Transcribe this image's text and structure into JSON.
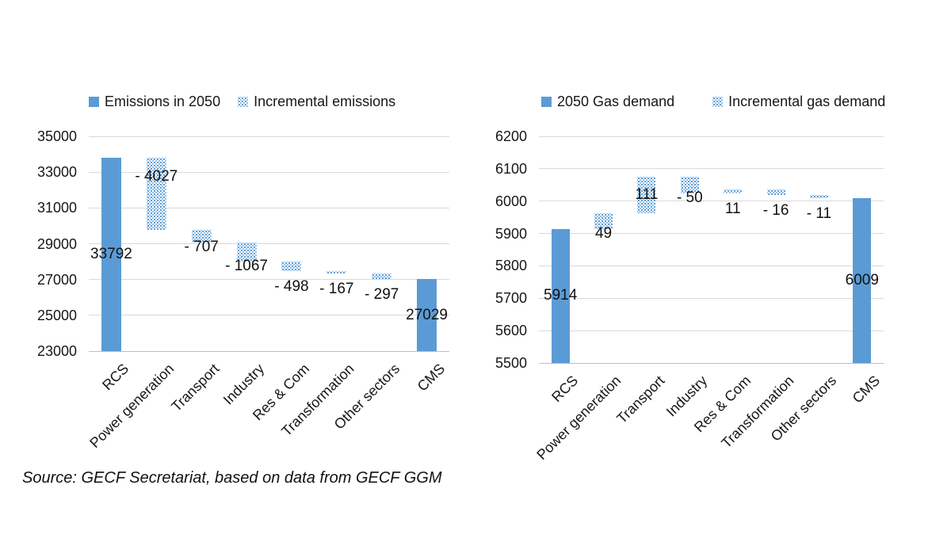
{
  "source_note": "Source: GECF Secretariat, based on data from GECF GGM",
  "colors": {
    "bar_solid": "#5b9bd5",
    "bar_pattern_dot": "#4f97d6",
    "gridline": "#d9d9d9",
    "axis_line": "#bfbfbf",
    "text": "#171717"
  },
  "chart_data": [
    {
      "type": "bar",
      "subtype": "waterfall",
      "title": "",
      "xlabel": "",
      "ylabel": "",
      "grid": true,
      "legend_position": "top",
      "legend": [
        {
          "label": "Emissions in 2050",
          "style": "solid"
        },
        {
          "label": "Incremental emissions",
          "style": "dotted"
        }
      ],
      "ylim": [
        23000,
        35000
      ],
      "yticks": [
        "23000",
        "25000",
        "27000",
        "29000",
        "31000",
        "33000",
        "35000"
      ],
      "categories": [
        "RCS",
        "Power generation",
        "Transport",
        "Industry",
        "Res & Com",
        "Transformation",
        "Other sectors",
        "CMS"
      ],
      "points": [
        {
          "category": "RCS",
          "kind": "total",
          "value": 33792,
          "label": "33792",
          "label_pos": "center"
        },
        {
          "category": "Power generation",
          "kind": "delta",
          "value": -4027,
          "label": "- 4027",
          "label_pos": "inside-top"
        },
        {
          "category": "Transport",
          "kind": "delta",
          "value": -707,
          "label": "- 707",
          "label_pos": "at-end"
        },
        {
          "category": "Industry",
          "kind": "delta",
          "value": -1067,
          "label": "- 1067",
          "label_pos": "at-end"
        },
        {
          "category": "Res & Com",
          "kind": "delta",
          "value": -498,
          "label": "- 498",
          "label_pos": "below"
        },
        {
          "category": "Transformation",
          "kind": "delta",
          "value": -167,
          "label": "- 167",
          "label_pos": "below"
        },
        {
          "category": "Other sectors",
          "kind": "delta",
          "value": -297,
          "label": "- 297",
          "label_pos": "below"
        },
        {
          "category": "CMS",
          "kind": "total",
          "value": 27029,
          "label": "27029",
          "label_pos": "center"
        }
      ]
    },
    {
      "type": "bar",
      "subtype": "waterfall",
      "title": "",
      "xlabel": "",
      "ylabel": "",
      "grid": true,
      "legend_position": "top",
      "legend": [
        {
          "label": "2050 Gas demand",
          "style": "solid"
        },
        {
          "label": "Incremental gas demand",
          "style": "dotted"
        }
      ],
      "ylim": [
        5500,
        6200
      ],
      "yticks": [
        "5500",
        "5600",
        "5700",
        "5800",
        "5900",
        "6000",
        "6100",
        "6200"
      ],
      "categories": [
        "RCS",
        "Power generation",
        "Transport",
        "Industry",
        "Res & Com",
        "Transformation",
        "Other sectors",
        "CMS"
      ],
      "points": [
        {
          "category": "RCS",
          "kind": "total",
          "value": 5914,
          "label": "5914",
          "label_pos": "center"
        },
        {
          "category": "Power generation",
          "kind": "delta",
          "value": 49,
          "label": "49",
          "label_pos": "at-end"
        },
        {
          "category": "Transport",
          "kind": "delta",
          "value": 111,
          "label": "111",
          "label_pos": "inside-center"
        },
        {
          "category": "Industry",
          "kind": "delta",
          "value": -50,
          "label": "- 50",
          "label_pos": "at-end"
        },
        {
          "category": "Res & Com",
          "kind": "delta",
          "value": 11,
          "label": "11",
          "label_pos": "below"
        },
        {
          "category": "Transformation",
          "kind": "delta",
          "value": -16,
          "label": "- 16",
          "label_pos": "below"
        },
        {
          "category": "Other sectors",
          "kind": "delta",
          "value": -11,
          "label": "- 11",
          "label_pos": "below"
        },
        {
          "category": "CMS",
          "kind": "total",
          "value": 6009,
          "label": "6009",
          "label_pos": "center"
        }
      ]
    }
  ]
}
